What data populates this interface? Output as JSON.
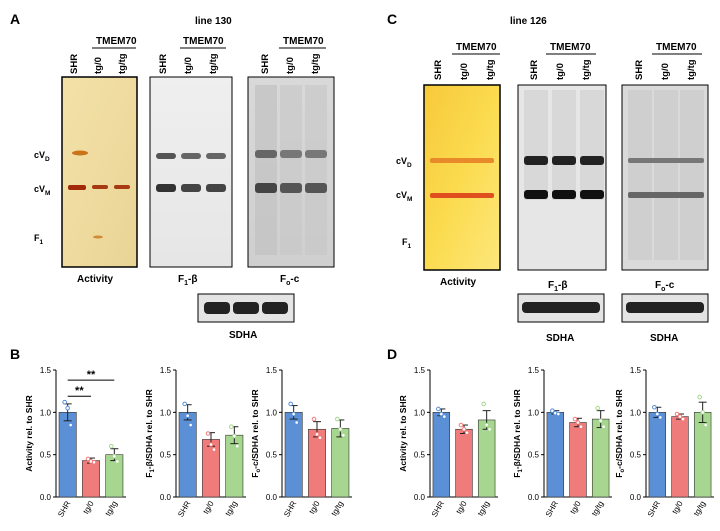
{
  "panels": {
    "A": {
      "letter": "A",
      "line_title": "line 130",
      "group_label": "TMEM70",
      "lane_labels": [
        "SHR",
        "tg/0",
        "tg/tg"
      ],
      "markers": [
        "cVD",
        "cVM",
        "F1"
      ],
      "blot_labels": [
        "Activity",
        "F1-β",
        "Fo-c"
      ],
      "loading_label": "SDHA"
    },
    "C": {
      "letter": "C",
      "line_title": "line 126",
      "group_label": "TMEM70",
      "lane_labels": [
        "SHR",
        "tg/0",
        "tg/tg"
      ],
      "markers": [
        "cVD",
        "cVM",
        "F1"
      ],
      "blot_labels": [
        "Activity",
        "F1-β",
        "Fo-c"
      ],
      "loading_label": "SDHA"
    }
  },
  "letters": {
    "B": "B",
    "D": "D"
  },
  "colors": {
    "SHR": "#5b8fd6",
    "tg/0": "#f07b7b",
    "tg/tg": "#a6d68f"
  },
  "chart_data": [
    {
      "panel": "B",
      "type": "bar",
      "ylabel": "Activity rel. to SHR",
      "categories": [
        "SHR",
        "tg/0",
        "tg/tg"
      ],
      "values": [
        1.0,
        0.43,
        0.5
      ],
      "errors": [
        0.1,
        0.03,
        0.07
      ],
      "ylim": [
        0,
        1.5
      ],
      "yticks": [
        "0.0",
        "0.5",
        "1.0",
        "1.5"
      ],
      "points": [
        [
          1.12,
          1.05,
          0.85
        ],
        [
          0.45,
          0.42,
          0.41
        ],
        [
          0.6,
          0.48,
          0.42
        ]
      ],
      "significance": [
        "**",
        "**"
      ]
    },
    {
      "panel": "B",
      "type": "bar",
      "ylabel": "F1-β/SDHA rel. to SHR",
      "categories": [
        "SHR",
        "tg/0",
        "tg/tg"
      ],
      "values": [
        1.0,
        0.68,
        0.73
      ],
      "errors": [
        0.09,
        0.08,
        0.1
      ],
      "ylim": [
        0,
        1.5
      ],
      "yticks": [
        "0.0",
        "0.5",
        "1.0",
        "1.5"
      ],
      "points": [
        [
          1.1,
          0.96,
          0.85
        ],
        [
          0.75,
          0.62,
          0.56
        ],
        [
          0.83,
          0.72,
          0.6
        ]
      ],
      "significance": []
    },
    {
      "panel": "B",
      "type": "bar",
      "ylabel": "Fo-c/SDHA rel. to SHR",
      "categories": [
        "SHR",
        "tg/0",
        "tg/tg"
      ],
      "values": [
        1.0,
        0.8,
        0.81
      ],
      "errors": [
        0.08,
        0.09,
        0.1
      ],
      "ylim": [
        0,
        1.5
      ],
      "yticks": [
        "0.0",
        "0.5",
        "1.0",
        "1.5"
      ],
      "points": [
        [
          1.1,
          0.98,
          0.88
        ],
        [
          0.92,
          0.74,
          0.7
        ],
        [
          0.92,
          0.8,
          0.73
        ]
      ],
      "significance": []
    },
    {
      "panel": "D",
      "type": "bar",
      "ylabel": "Activity rel. to SHR",
      "categories": [
        "SHR",
        "tg/0",
        "tg/tg"
      ],
      "values": [
        1.0,
        0.8,
        0.91
      ],
      "errors": [
        0.04,
        0.05,
        0.11
      ],
      "ylim": [
        0,
        1.5
      ],
      "yticks": [
        "0.0",
        "0.5",
        "1.0",
        "1.5"
      ],
      "points": [
        [
          1.04,
          0.98,
          0.95
        ],
        [
          0.85,
          0.8,
          0.76
        ],
        [
          1.1,
          0.85,
          0.8
        ]
      ],
      "significance": []
    },
    {
      "panel": "D",
      "type": "bar",
      "ylabel": "F1-β/SDHA rel. to SHR",
      "categories": [
        "SHR",
        "tg/0",
        "tg/tg"
      ],
      "values": [
        1.0,
        0.88,
        0.92
      ],
      "errors": [
        0.02,
        0.05,
        0.1
      ],
      "ylim": [
        0,
        1.5
      ],
      "yticks": [
        "0.0",
        "0.5",
        "1.0",
        "1.5"
      ],
      "points": [
        [
          1.02,
          0.99,
          0.98
        ],
        [
          0.92,
          0.88,
          0.83
        ],
        [
          1.05,
          0.9,
          0.83
        ]
      ],
      "significance": []
    },
    {
      "panel": "D",
      "type": "bar",
      "ylabel": "Fo-c/SDHA rel. to SHR",
      "categories": [
        "SHR",
        "tg/0",
        "tg/tg"
      ],
      "values": [
        1.0,
        0.95,
        1.0
      ],
      "errors": [
        0.06,
        0.03,
        0.12
      ],
      "ylim": [
        0,
        1.5
      ],
      "yticks": [
        "0.0",
        "0.5",
        "1.0",
        "1.5"
      ],
      "points": [
        [
          1.06,
          0.98,
          0.94
        ],
        [
          0.98,
          0.95,
          0.92
        ],
        [
          1.18,
          1.0,
          0.85
        ]
      ],
      "significance": []
    }
  ]
}
